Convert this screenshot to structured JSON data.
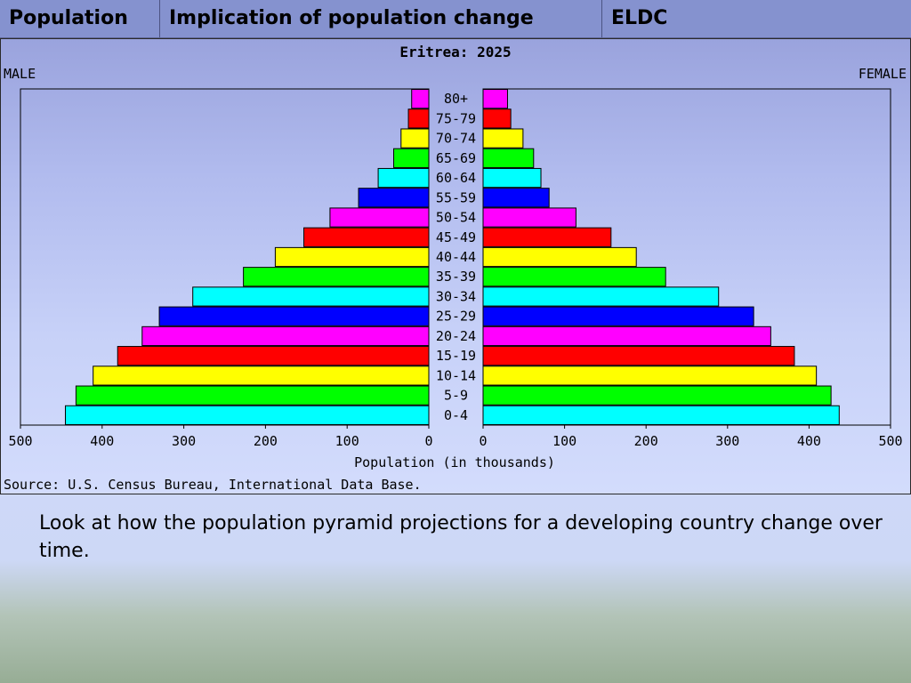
{
  "tabs": [
    {
      "label": "Population"
    },
    {
      "label": "Implication of population change"
    },
    {
      "label": "ELDC"
    }
  ],
  "chart_data": {
    "type": "bar",
    "orientation": "horizontal-pyramid",
    "title": "Eritrea: 2025",
    "left_label": "MALE",
    "right_label": "FEMALE",
    "xlabel": "Population (in thousands)",
    "source": "Source: U.S. Census Bureau, International Data Base.",
    "xlim": [
      0,
      500
    ],
    "ticks": [
      "500",
      "400",
      "300",
      "200",
      "100",
      "0"
    ],
    "ticks_right": [
      "0",
      "100",
      "200",
      "300",
      "400",
      "500"
    ],
    "tick_values": [
      0,
      100,
      200,
      300,
      400,
      500
    ],
    "categories": [
      "0-4",
      "5-9",
      "10-14",
      "15-19",
      "20-24",
      "25-29",
      "30-34",
      "35-39",
      "40-44",
      "45-49",
      "50-54",
      "55-59",
      "60-64",
      "65-69",
      "70-74",
      "75-79",
      "80+"
    ],
    "bar_colors": [
      "#00ffff",
      "#00ff00",
      "#ffff00",
      "#ff0000",
      "#ff00ff",
      "#0000ff",
      "#00ffff",
      "#00ff00",
      "#ffff00",
      "#ff0000",
      "#ff00ff",
      "#0000ff",
      "#00ffff",
      "#00ff00",
      "#ffff00",
      "#ff0000",
      "#ff00ff"
    ],
    "series": [
      {
        "values": [
          445,
          432,
          411,
          381,
          351,
          330,
          289,
          227,
          188,
          153,
          121,
          86,
          62,
          43,
          34,
          25,
          21
        ]
      },
      {
        "values": [
          437,
          427,
          409,
          382,
          353,
          332,
          289,
          224,
          188,
          157,
          114,
          81,
          71,
          62,
          49,
          34,
          30
        ]
      }
    ]
  },
  "caption": "Look at how the population pyramid projections for a developing country change over time."
}
